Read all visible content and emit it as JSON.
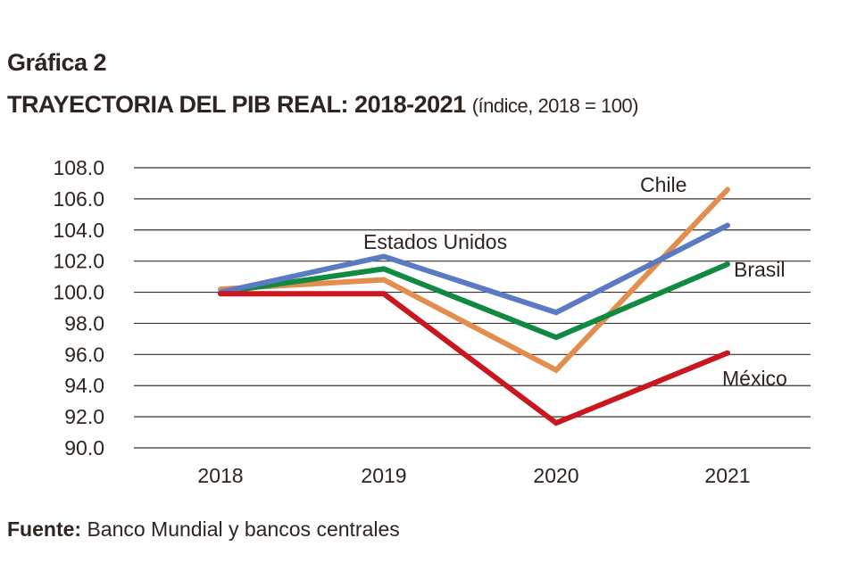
{
  "chart_data": {
    "type": "line",
    "title": "Gráfica 2",
    "subtitle": "TRAYECTORIA DEL PIB REAL: 2018-2021",
    "subtitle_note": "(índice, 2018 = 100)",
    "categories": [
      "2018",
      "2019",
      "2020",
      "2021"
    ],
    "ylim": [
      90,
      108
    ],
    "yticks": [
      "90.0",
      "92.0",
      "94.0",
      "96.0",
      "98.0",
      "100.0",
      "102.0",
      "104.0",
      "106.0",
      "108.0"
    ],
    "grid": true,
    "legend": "inline labels",
    "series": [
      {
        "name": "Estados Unidos",
        "color": "#5a7bc4",
        "values": [
          100.0,
          102.3,
          98.7,
          104.3
        ]
      },
      {
        "name": "Brasil",
        "color": "#108a40",
        "values": [
          100.0,
          101.5,
          97.1,
          101.8
        ]
      },
      {
        "name": "Chile",
        "color": "#e38d4f",
        "values": [
          100.2,
          100.8,
          95.0,
          106.6
        ]
      },
      {
        "name": "México",
        "color": "#c8171e",
        "values": [
          99.9,
          99.9,
          91.6,
          96.1
        ]
      }
    ]
  },
  "source": {
    "label": "Fuente:",
    "text": " Banco Mundial y bancos centrales"
  }
}
